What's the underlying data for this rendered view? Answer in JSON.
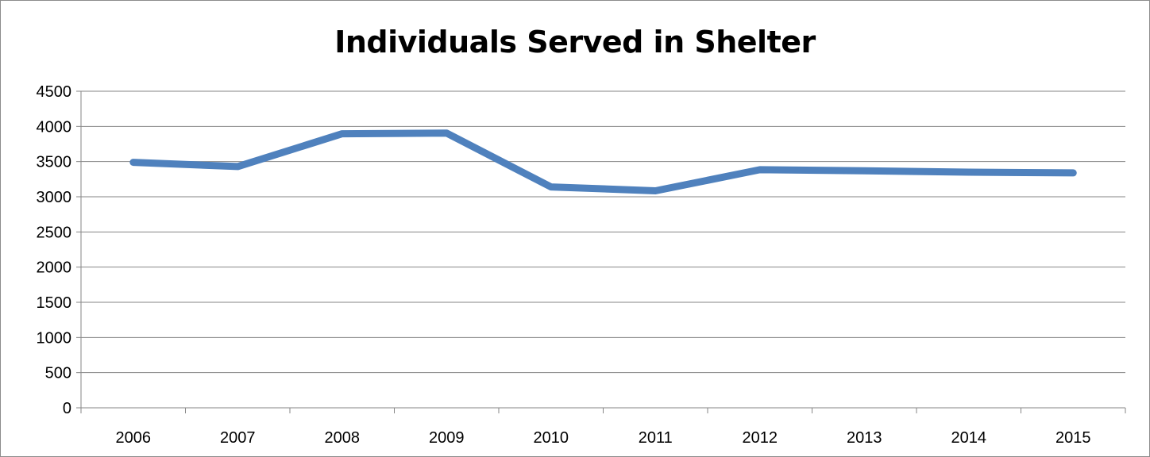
{
  "chart_data": {
    "type": "line",
    "title": "Individuals Served in Shelter",
    "xlabel": "",
    "ylabel": "",
    "categories": [
      "2006",
      "2007",
      "2008",
      "2009",
      "2010",
      "2011",
      "2012",
      "2013",
      "2014",
      "2015"
    ],
    "series": [
      {
        "values": [
          3490,
          3430,
          3895,
          3905,
          3140,
          3085,
          3385,
          3370,
          3350,
          3340
        ],
        "color": "#4f81bd"
      }
    ],
    "ylim": [
      0,
      4500
    ],
    "yticks": [
      "0",
      "500",
      "1000",
      "1500",
      "2000",
      "2500",
      "3000",
      "3500",
      "4000",
      "4500"
    ],
    "grid": true,
    "legend": "none"
  }
}
